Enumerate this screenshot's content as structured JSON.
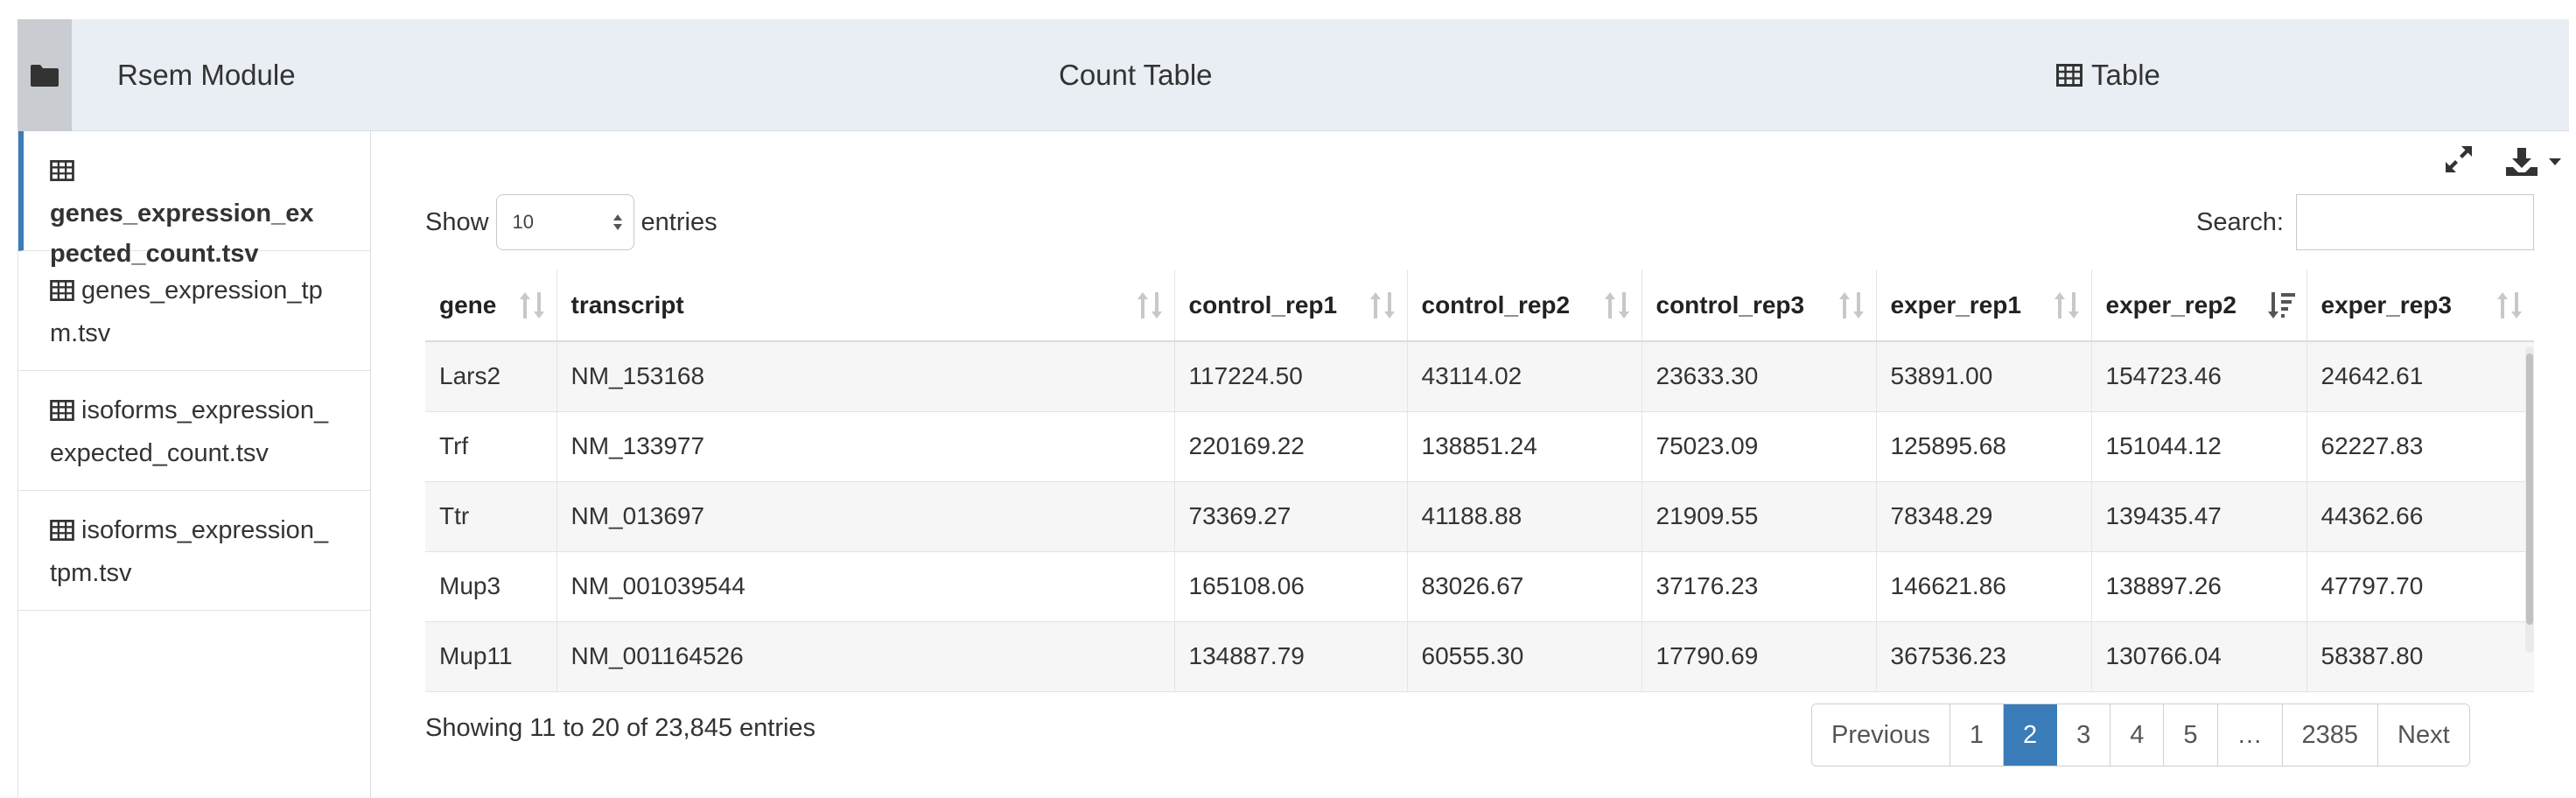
{
  "header": {
    "module_title": "Rsem Module",
    "count_title": "Count Table",
    "view_title": "Table"
  },
  "sidebar": {
    "items": [
      {
        "label": "genes_expression_ex pected_count.tsv",
        "active": true
      },
      {
        "label": "genes_expression_tp m.tsv",
        "active": false
      },
      {
        "label": "isoforms_expression_ expected_count.tsv",
        "active": false
      },
      {
        "label": "isoforms_expression_ tpm.tsv",
        "active": false
      }
    ]
  },
  "controls": {
    "show_label": "Show",
    "entries_label": "entries",
    "length_value": "10",
    "search_label": "Search:",
    "search_value": ""
  },
  "table": {
    "columns": [
      "gene",
      "transcript",
      "control_rep1",
      "control_rep2",
      "control_rep3",
      "exper_rep1",
      "exper_rep2",
      "exper_rep3"
    ],
    "sorted_column": "exper_rep2",
    "sort_direction": "desc",
    "rows": [
      [
        "Lars2",
        "NM_153168",
        "117224.50",
        "43114.02",
        "23633.30",
        "53891.00",
        "154723.46",
        "24642.61"
      ],
      [
        "Trf",
        "NM_133977",
        "220169.22",
        "138851.24",
        "75023.09",
        "125895.68",
        "151044.12",
        "62227.83"
      ],
      [
        "Ttr",
        "NM_013697",
        "73369.27",
        "41188.88",
        "21909.55",
        "78348.29",
        "139435.47",
        "44362.66"
      ],
      [
        "Mup3",
        "NM_001039544",
        "165108.06",
        "83026.67",
        "37176.23",
        "146621.86",
        "138897.26",
        "47797.70"
      ],
      [
        "Mup11",
        "NM_001164526",
        "134887.79",
        "60555.30",
        "17790.69",
        "367536.23",
        "130766.04",
        "58387.80"
      ]
    ]
  },
  "footer": {
    "info": "Showing 11 to 20 of 23,845 entries",
    "pagination": [
      "Previous",
      "1",
      "2",
      "3",
      "4",
      "5",
      "…",
      "2385",
      "Next"
    ],
    "current_page": "2"
  },
  "icons": {
    "folder": "folder-icon",
    "table": "table-icon",
    "expand": "expand-icon",
    "download": "download-icon",
    "sort": "sort-icon"
  }
}
